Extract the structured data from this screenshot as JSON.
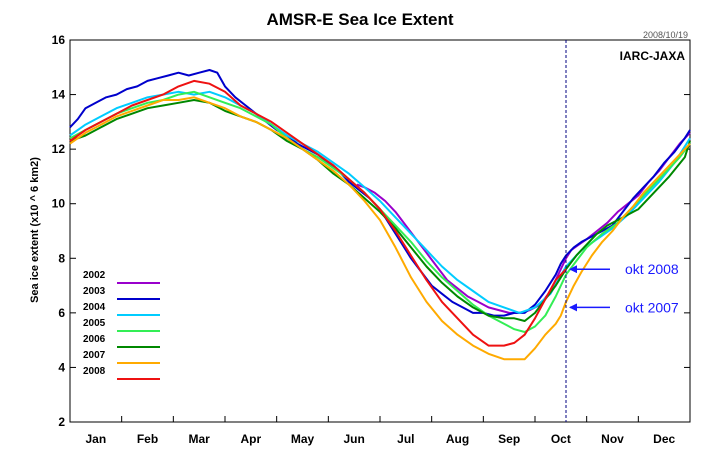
{
  "chart_data": {
    "type": "line",
    "title": "AMSR-E Sea Ice Extent",
    "date_stamp": "2008/10/19",
    "source": "IARC-JAXA",
    "ylabel": "Sea ice extent (x10 ^ 6 km2)",
    "xlabel": "",
    "ylim": [
      2,
      16
    ],
    "yticks": [
      2,
      4,
      6,
      8,
      10,
      12,
      14,
      16
    ],
    "xlim": [
      0,
      12
    ],
    "months": [
      "Jan",
      "Feb",
      "Mar",
      "Apr",
      "May",
      "Jun",
      "Jul",
      "Aug",
      "Sep",
      "Oct",
      "Nov",
      "Dec"
    ],
    "grid": false,
    "legend_position": "left",
    "vertical_marker": {
      "x": 9.6
    },
    "x_unit": "month index (0 = Jan 1)",
    "series": [
      {
        "name": "2002",
        "color": "#9900cc",
        "x": [
          5.55,
          5.7,
          5.9,
          6.1,
          6.3,
          6.5,
          6.7,
          6.9,
          7.1,
          7.3,
          7.5,
          7.7,
          7.9,
          8.1,
          8.3,
          8.5,
          8.7,
          8.9,
          9.1,
          9.3,
          9.5,
          9.6,
          9.7,
          9.85,
          10.0,
          10.2,
          10.4,
          10.6,
          10.8,
          11.0,
          11.2,
          11.4,
          11.6,
          11.8,
          12.0
        ],
        "y": [
          10.7,
          10.6,
          10.4,
          10.1,
          9.7,
          9.2,
          8.7,
          8.2,
          7.7,
          7.2,
          6.9,
          6.6,
          6.4,
          6.2,
          6.1,
          6.0,
          6.0,
          6.1,
          6.3,
          6.8,
          7.6,
          8.0,
          8.3,
          8.5,
          8.7,
          9.0,
          9.3,
          9.7,
          10.0,
          10.3,
          10.8,
          11.2,
          11.7,
          12.2,
          12.6
        ]
      },
      {
        "name": "2003",
        "color": "#0000cc",
        "x": [
          0.0,
          0.15,
          0.3,
          0.5,
          0.7,
          0.9,
          1.1,
          1.3,
          1.5,
          1.7,
          1.9,
          2.1,
          2.3,
          2.5,
          2.7,
          2.85,
          3.0,
          3.2,
          3.4,
          3.6,
          3.8,
          4.0,
          4.2,
          4.4,
          4.6,
          4.8,
          5.0,
          5.2,
          5.4,
          5.6,
          5.8,
          6.0,
          6.2,
          6.4,
          6.6,
          6.8,
          7.0,
          7.2,
          7.4,
          7.6,
          7.8,
          8.0,
          8.2,
          8.4,
          8.6,
          8.8,
          9.0,
          9.2,
          9.4,
          9.5,
          9.6,
          9.75,
          9.9,
          10.1,
          10.3,
          10.5,
          10.7,
          10.9,
          11.1,
          11.3,
          11.5,
          11.7,
          11.9,
          12.0
        ],
        "y": [
          12.8,
          13.1,
          13.5,
          13.7,
          13.9,
          14.0,
          14.2,
          14.3,
          14.5,
          14.6,
          14.7,
          14.8,
          14.7,
          14.8,
          14.9,
          14.8,
          14.3,
          13.9,
          13.6,
          13.3,
          13.0,
          12.7,
          12.5,
          12.2,
          12.0,
          11.8,
          11.5,
          11.2,
          10.8,
          10.5,
          10.2,
          9.8,
          9.2,
          8.6,
          8.0,
          7.5,
          7.0,
          6.7,
          6.4,
          6.2,
          6.0,
          6.0,
          5.9,
          5.9,
          6.0,
          6.0,
          6.3,
          6.8,
          7.4,
          7.8,
          8.1,
          8.4,
          8.6,
          8.8,
          9.0,
          9.2,
          9.7,
          10.2,
          10.6,
          11.0,
          11.5,
          11.9,
          12.4,
          12.7
        ]
      },
      {
        "name": "2004",
        "color": "#00ccff",
        "x": [
          0.0,
          0.3,
          0.6,
          0.9,
          1.2,
          1.5,
          1.8,
          2.1,
          2.4,
          2.7,
          3.0,
          3.3,
          3.6,
          3.9,
          4.2,
          4.5,
          4.8,
          5.1,
          5.4,
          5.7,
          6.0,
          6.3,
          6.6,
          6.9,
          7.2,
          7.5,
          7.8,
          8.1,
          8.4,
          8.7,
          9.0,
          9.3,
          9.6,
          9.9,
          10.2,
          10.5,
          10.8,
          11.1,
          11.4,
          11.7,
          12.0
        ],
        "y": [
          12.5,
          12.9,
          13.2,
          13.5,
          13.7,
          13.9,
          14.0,
          14.1,
          14.0,
          14.1,
          13.9,
          13.6,
          13.3,
          12.9,
          12.5,
          12.2,
          11.9,
          11.5,
          11.1,
          10.6,
          10.1,
          9.5,
          8.9,
          8.3,
          7.7,
          7.2,
          6.8,
          6.4,
          6.2,
          6.0,
          6.2,
          6.7,
          7.7,
          8.3,
          8.7,
          9.1,
          9.6,
          10.2,
          10.8,
          11.5,
          12.4
        ]
      },
      {
        "name": "2005",
        "color": "#33ee55",
        "x": [
          0.0,
          0.3,
          0.6,
          0.9,
          1.2,
          1.5,
          1.8,
          2.1,
          2.4,
          2.7,
          3.0,
          3.3,
          3.6,
          3.9,
          4.2,
          4.5,
          4.8,
          5.1,
          5.4,
          5.7,
          6.0,
          6.3,
          6.6,
          6.9,
          7.2,
          7.5,
          7.8,
          8.1,
          8.4,
          8.6,
          8.8,
          9.0,
          9.2,
          9.4,
          9.6,
          9.8,
          10.0,
          10.3,
          10.6,
          10.9,
          11.2,
          11.5,
          11.8,
          12.0
        ],
        "y": [
          12.4,
          12.7,
          13.0,
          13.3,
          13.5,
          13.7,
          13.8,
          14.0,
          14.1,
          13.9,
          13.7,
          13.5,
          13.2,
          12.9,
          12.4,
          12.0,
          11.7,
          11.3,
          10.9,
          10.4,
          9.8,
          9.2,
          8.6,
          7.9,
          7.3,
          6.8,
          6.3,
          5.9,
          5.6,
          5.4,
          5.3,
          5.5,
          5.9,
          6.6,
          7.4,
          7.9,
          8.4,
          8.9,
          9.3,
          9.9,
          10.5,
          11.1,
          11.7,
          12.2
        ]
      },
      {
        "name": "2006",
        "color": "#008800",
        "x": [
          0.0,
          0.3,
          0.6,
          0.9,
          1.2,
          1.5,
          1.8,
          2.1,
          2.4,
          2.7,
          3.0,
          3.3,
          3.6,
          3.9,
          4.2,
          4.5,
          4.8,
          5.1,
          5.4,
          5.7,
          6.0,
          6.3,
          6.6,
          6.9,
          7.2,
          7.5,
          7.8,
          8.1,
          8.4,
          8.6,
          8.8,
          9.0,
          9.2,
          9.4,
          9.6,
          9.8,
          10.0,
          10.2,
          10.4,
          10.6,
          10.8,
          11.0,
          11.3,
          11.6,
          11.9,
          12.0
        ],
        "y": [
          12.3,
          12.5,
          12.8,
          13.1,
          13.3,
          13.5,
          13.6,
          13.7,
          13.8,
          13.7,
          13.4,
          13.2,
          13.0,
          12.7,
          12.3,
          12.0,
          11.6,
          11.1,
          10.7,
          10.2,
          9.7,
          9.1,
          8.4,
          7.7,
          7.1,
          6.6,
          6.2,
          5.9,
          5.8,
          5.8,
          5.7,
          6.0,
          6.5,
          7.0,
          7.6,
          8.1,
          8.5,
          8.9,
          9.2,
          9.4,
          9.6,
          9.8,
          10.4,
          11.0,
          11.7,
          12.3
        ]
      },
      {
        "name": "2007",
        "color": "#ffaa00",
        "x": [
          0.0,
          0.3,
          0.6,
          0.9,
          1.2,
          1.5,
          1.8,
          2.1,
          2.4,
          2.7,
          3.0,
          3.3,
          3.6,
          3.9,
          4.2,
          4.5,
          4.8,
          5.1,
          5.4,
          5.7,
          6.0,
          6.3,
          6.6,
          6.9,
          7.2,
          7.5,
          7.8,
          8.1,
          8.4,
          8.6,
          8.8,
          9.0,
          9.2,
          9.4,
          9.5,
          9.6,
          9.75,
          9.9,
          10.1,
          10.3,
          10.5,
          10.7,
          10.9,
          11.1,
          11.4,
          11.7,
          12.0
        ],
        "y": [
          12.2,
          12.6,
          12.9,
          13.2,
          13.4,
          13.6,
          13.8,
          13.8,
          13.9,
          13.7,
          13.5,
          13.2,
          13.0,
          12.7,
          12.4,
          12.0,
          11.6,
          11.2,
          10.7,
          10.1,
          9.4,
          8.4,
          7.3,
          6.4,
          5.7,
          5.2,
          4.8,
          4.5,
          4.3,
          4.3,
          4.3,
          4.7,
          5.2,
          5.6,
          5.9,
          6.4,
          7.0,
          7.5,
          8.1,
          8.6,
          9.0,
          9.5,
          9.9,
          10.4,
          11.0,
          11.6,
          12.2
        ]
      },
      {
        "name": "2008",
        "color": "#ee1111",
        "x": [
          0.0,
          0.3,
          0.6,
          0.9,
          1.2,
          1.5,
          1.8,
          2.1,
          2.4,
          2.7,
          3.0,
          3.3,
          3.6,
          3.9,
          4.2,
          4.5,
          4.8,
          5.1,
          5.4,
          5.7,
          6.0,
          6.3,
          6.6,
          6.9,
          7.2,
          7.5,
          7.8,
          8.1,
          8.4,
          8.6,
          8.8,
          9.0,
          9.2,
          9.4,
          9.6
        ],
        "y": [
          12.3,
          12.7,
          13.0,
          13.3,
          13.6,
          13.8,
          14.0,
          14.3,
          14.5,
          14.4,
          14.1,
          13.6,
          13.3,
          13.0,
          12.6,
          12.2,
          11.8,
          11.4,
          10.9,
          10.4,
          9.8,
          9.0,
          8.1,
          7.2,
          6.4,
          5.8,
          5.2,
          4.8,
          4.8,
          4.9,
          5.2,
          5.8,
          6.5,
          7.2,
          7.6
        ]
      }
    ],
    "annotations": [
      {
        "text": "okt 2008",
        "x": 9.6,
        "y": 7.6
      },
      {
        "text": "okt 2007",
        "x": 9.6,
        "y": 6.2
      }
    ]
  }
}
